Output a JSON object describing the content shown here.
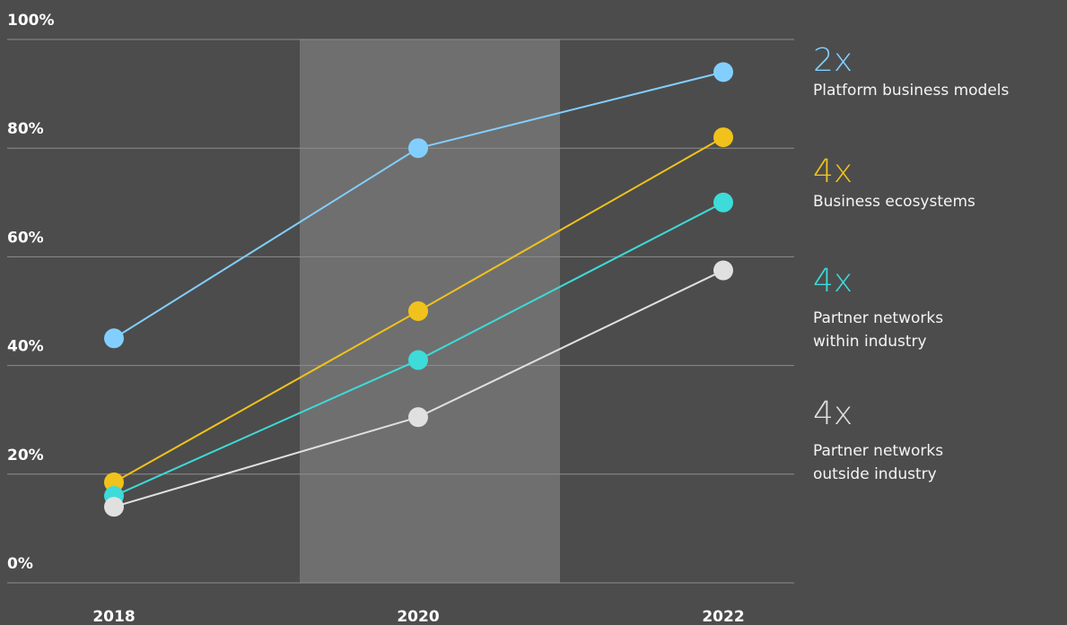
{
  "chart_data": {
    "type": "line",
    "x": [
      "2018",
      "2020",
      "2022"
    ],
    "ylim": [
      0,
      100
    ],
    "yticks": [
      {
        "value": 0,
        "label": "0%"
      },
      {
        "value": 20,
        "label": "20%"
      },
      {
        "value": 40,
        "label": "40%"
      },
      {
        "value": 60,
        "label": "60%"
      },
      {
        "value": 80,
        "label": "80%"
      },
      {
        "value": 100,
        "label": "100%"
      }
    ],
    "grid": true,
    "series": [
      {
        "name": "Platform business models",
        "annotation": "2x",
        "color": "#82cfff",
        "values": [
          45,
          80,
          94
        ]
      },
      {
        "name": "Business ecosystems",
        "annotation": "4x",
        "color": "#f1c21b",
        "values": [
          18.5,
          50,
          82
        ]
      },
      {
        "name": "Partner networks\nwithin industry",
        "annotation": "4x",
        "color": "#3ddbd9",
        "values": [
          16,
          41,
          70
        ]
      },
      {
        "name": "Partner networks\noutside industry",
        "annotation": "4x",
        "color": "#e0e0e0",
        "values": [
          14,
          30.5,
          57.5
        ]
      }
    ]
  }
}
